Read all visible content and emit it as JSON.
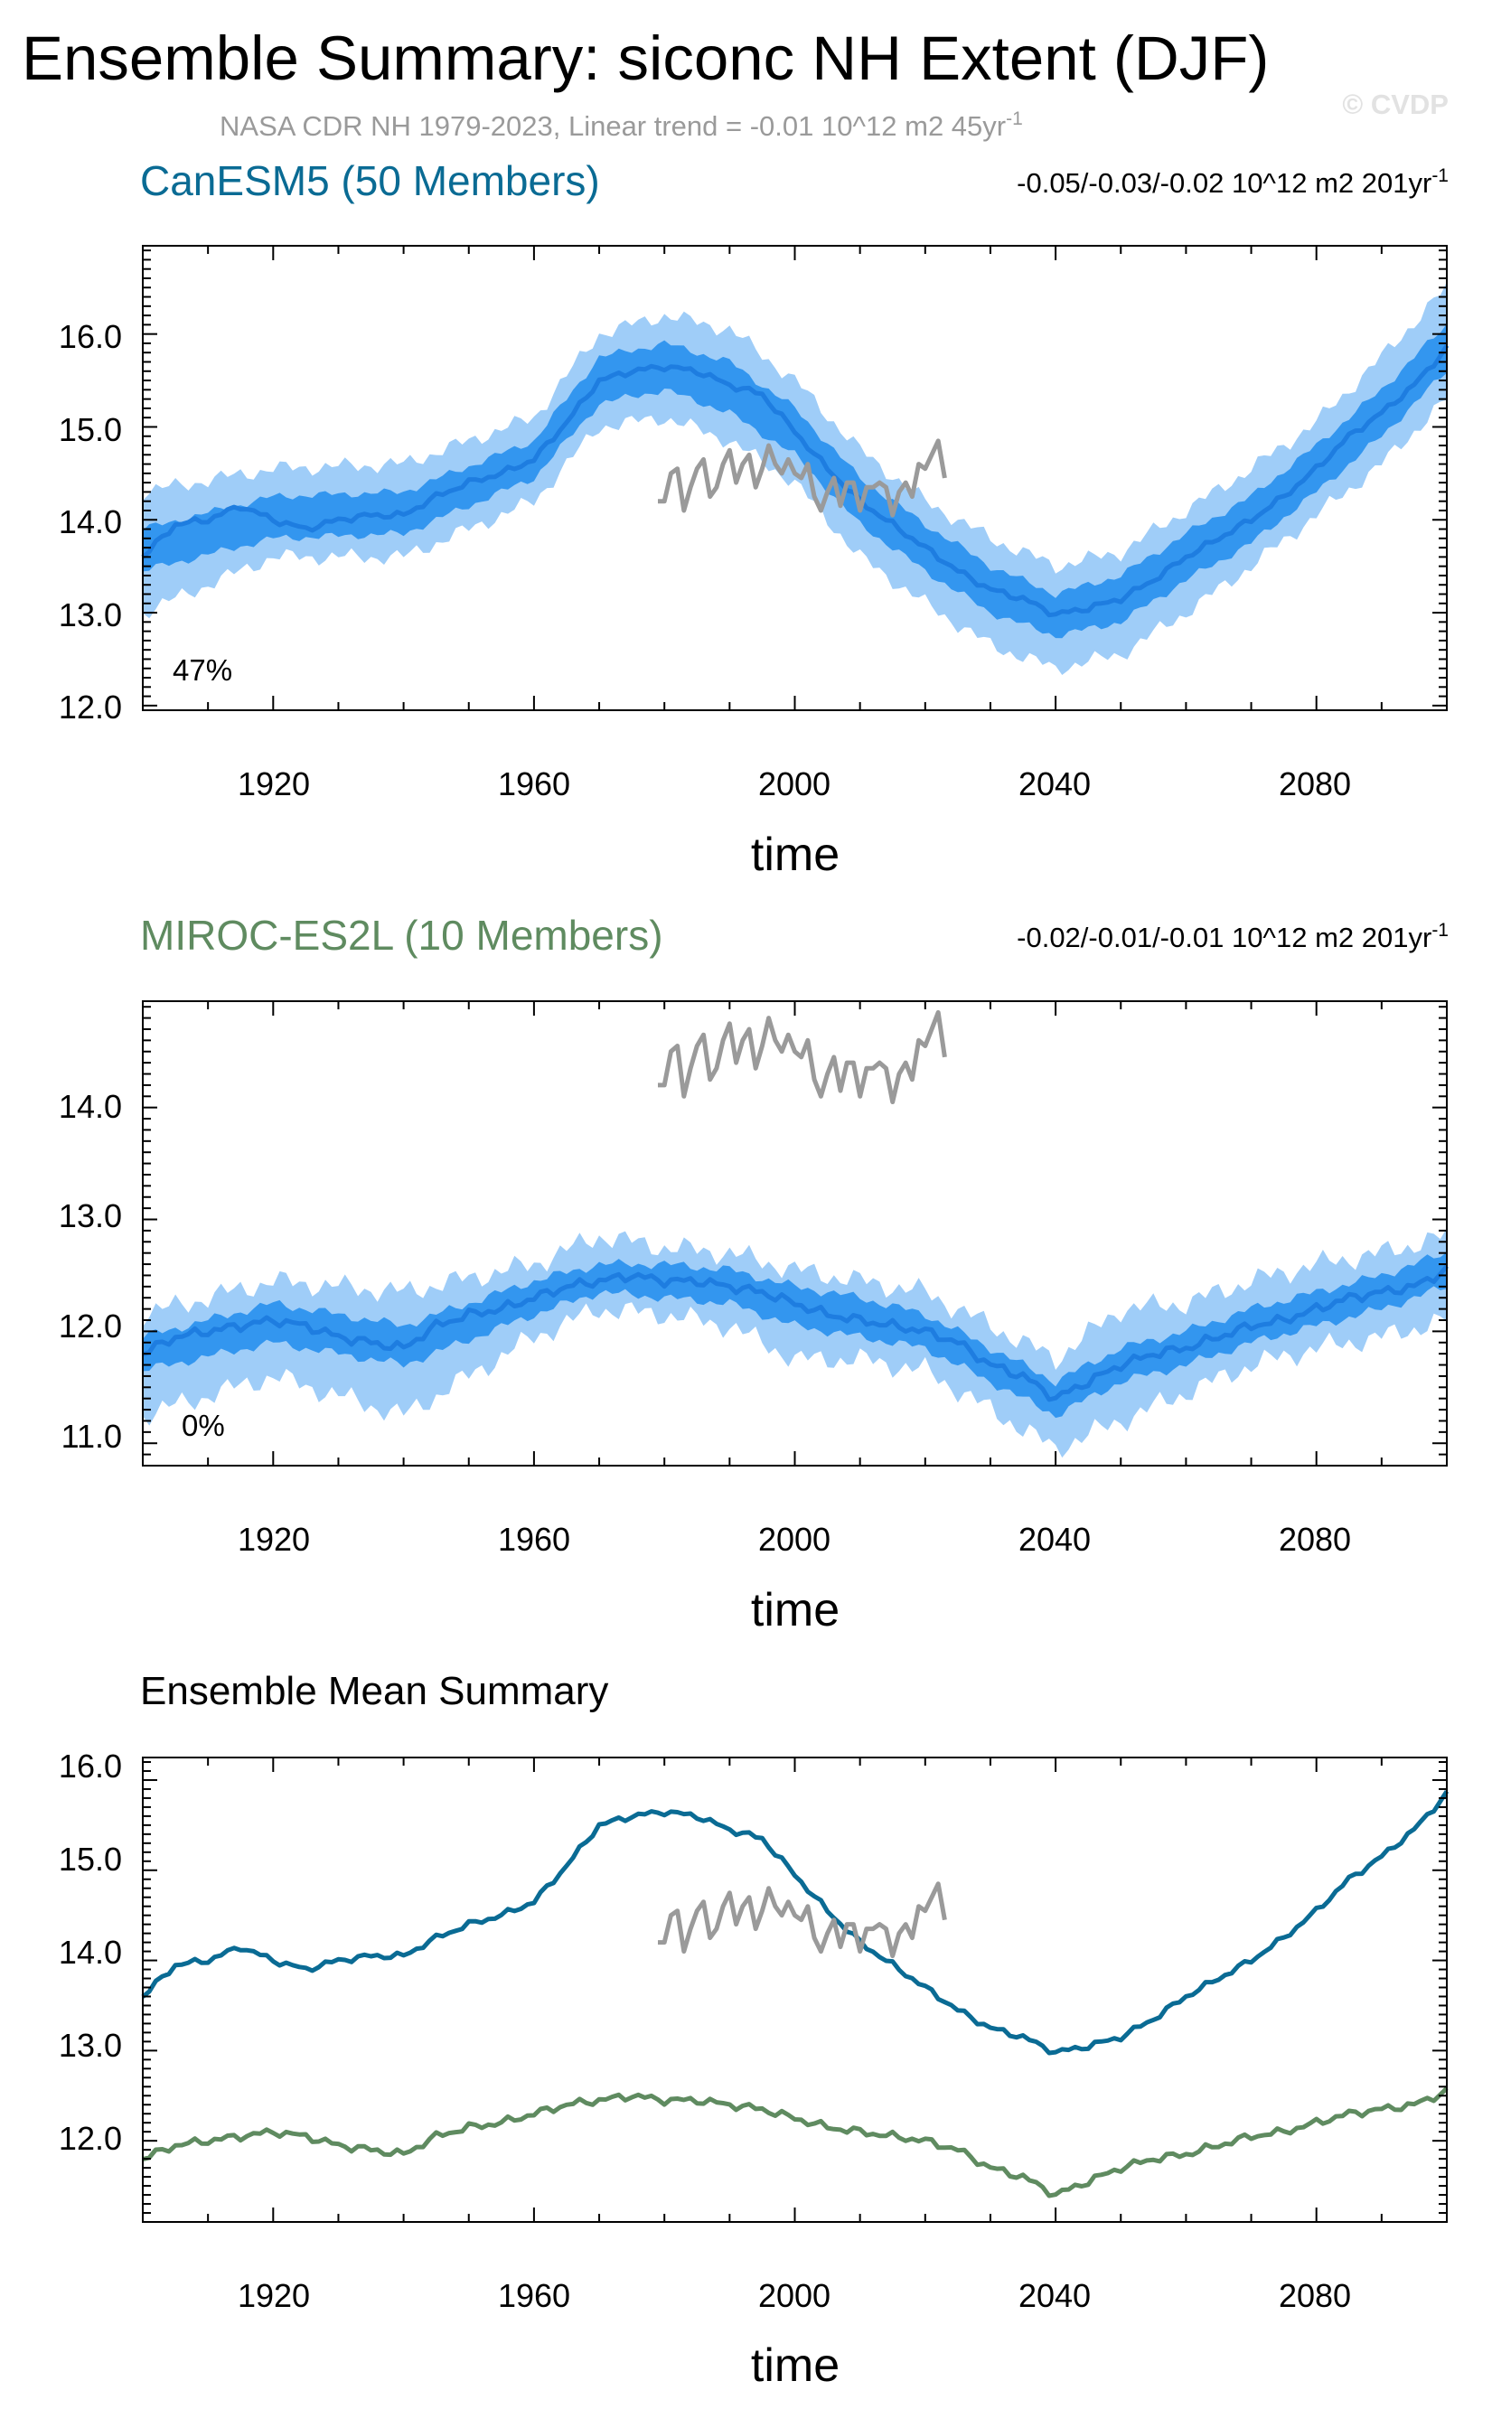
{
  "title": "Ensemble Summary: siconc NH Extent (DJF)",
  "subtitle": "NASA CDR NH 1979-2023, Linear trend = -0.01 10^12 m2 45yr",
  "subtitle_sup": "-1",
  "watermark": "© CVDP",
  "colors": {
    "canesm_title": "#0a6b94",
    "miroc_title": "#5f8b60",
    "band_outer": "#9fcdf8",
    "band_inner": "#3396ef",
    "ens_mean": "#1e7de0",
    "obs": "#9a9a9a",
    "canesm_line": "#0a6b94",
    "miroc_line": "#5f8b60"
  },
  "chart_data": [
    {
      "type": "area",
      "name": "CanESM5",
      "title": "CanESM5 (50 Members)",
      "trend_text": "-0.05/-0.03/-0.02 10^12 m2 201yr",
      "trend_sup": "-1",
      "percent_label": "47%",
      "xlabel": "time",
      "ylabel": "",
      "xlim": [
        1900,
        2100
      ],
      "ylim": [
        11.95,
        16.95
      ],
      "xticks": [
        1920,
        1960,
        2000,
        2040,
        2080
      ],
      "yticks": [
        12.0,
        13.0,
        14.0,
        15.0,
        16.0
      ],
      "yticklabels": [
        "12.0",
        "13.0",
        "14.0",
        "15.0",
        "16.0"
      ],
      "series": [
        {
          "name": "ensemble mean",
          "x": [
            1900,
            1905,
            1910,
            1915,
            1920,
            1925,
            1930,
            1935,
            1940,
            1945,
            1950,
            1955,
            1960,
            1965,
            1970,
            1975,
            1980,
            1985,
            1990,
            1995,
            2000,
            2005,
            2010,
            2015,
            2020,
            2025,
            2030,
            2035,
            2040,
            2045,
            2050,
            2055,
            2060,
            2065,
            2070,
            2075,
            2080,
            2085,
            2090,
            2095,
            2100
          ],
          "values": [
            13.6,
            13.95,
            14.0,
            14.15,
            14.0,
            13.9,
            14.0,
            14.05,
            14.05,
            14.25,
            14.4,
            14.5,
            14.65,
            15.05,
            15.5,
            15.6,
            15.65,
            15.6,
            15.45,
            15.35,
            14.95,
            14.55,
            14.2,
            13.95,
            13.7,
            13.45,
            13.25,
            13.15,
            12.98,
            13.05,
            13.15,
            13.35,
            13.6,
            13.8,
            14.0,
            14.25,
            14.55,
            14.9,
            15.15,
            15.45,
            15.85
          ]
        },
        {
          "name": "inner range (25th-75th)",
          "x": [
            1900,
            1920,
            1940,
            1960,
            1970,
            1980,
            1990,
            2000,
            2010,
            2020,
            2030,
            2040,
            2050,
            2060,
            2070,
            2080,
            2090,
            2100
          ],
          "lower": [
            13.45,
            13.8,
            13.85,
            14.45,
            15.25,
            15.4,
            15.15,
            14.7,
            13.95,
            13.45,
            13.0,
            12.75,
            12.9,
            13.35,
            13.75,
            14.3,
            14.9,
            15.6
          ],
          "upper": [
            13.9,
            14.25,
            14.3,
            14.85,
            15.75,
            15.9,
            15.7,
            15.2,
            14.45,
            13.95,
            13.5,
            13.2,
            13.4,
            13.85,
            14.25,
            14.8,
            15.4,
            16.1
          ]
        },
        {
          "name": "outer range (min-max)",
          "x": [
            1900,
            1920,
            1940,
            1960,
            1970,
            1980,
            1990,
            2000,
            2010,
            2020,
            2030,
            2040,
            2050,
            2060,
            2070,
            2080,
            2090,
            2100
          ],
          "lower": [
            13.0,
            13.6,
            13.6,
            14.2,
            15.0,
            15.1,
            14.85,
            14.4,
            13.6,
            13.1,
            12.65,
            12.4,
            12.55,
            13.0,
            13.5,
            14.05,
            14.6,
            15.3
          ],
          "upper": [
            14.3,
            14.55,
            14.6,
            15.1,
            16.0,
            16.2,
            16.05,
            15.5,
            14.75,
            14.2,
            13.8,
            13.5,
            13.65,
            14.1,
            14.55,
            15.05,
            15.75,
            16.5
          ]
        },
        {
          "name": "observations",
          "x": [
            1979,
            1980,
            1981,
            1982,
            1983,
            1984,
            1985,
            1986,
            1987,
            1988,
            1989,
            1990,
            1991,
            1992,
            1993,
            1994,
            1995,
            1996,
            1997,
            1998,
            1999,
            2000,
            2001,
            2002,
            2003,
            2004,
            2005,
            2006,
            2007,
            2008,
            2009,
            2010,
            2011,
            2012,
            2013,
            2014,
            2015,
            2016,
            2017,
            2018,
            2019,
            2020,
            2021,
            2022,
            2023
          ],
          "values": [
            14.2,
            14.2,
            14.5,
            14.55,
            14.1,
            14.35,
            14.55,
            14.65,
            14.25,
            14.35,
            14.6,
            14.75,
            14.4,
            14.6,
            14.7,
            14.35,
            14.55,
            14.8,
            14.6,
            14.5,
            14.65,
            14.5,
            14.45,
            14.6,
            14.25,
            14.1,
            14.3,
            14.45,
            14.15,
            14.4,
            14.4,
            14.1,
            14.35,
            14.35,
            14.4,
            14.35,
            14.05,
            14.3,
            14.4,
            14.25,
            14.6,
            14.55,
            14.7,
            14.85,
            14.45
          ]
        }
      ]
    },
    {
      "type": "area",
      "name": "MIROC-ES2L",
      "title": "MIROC-ES2L (10 Members)",
      "trend_text": "-0.02/-0.01/-0.01 10^12 m2 201yr",
      "trend_sup": "-1",
      "percent_label": "0%",
      "xlabel": "time",
      "ylabel": "",
      "xlim": [
        1900,
        2100
      ],
      "ylim": [
        10.8,
        14.95
      ],
      "xticks": [
        1920,
        1960,
        2000,
        2040,
        2080
      ],
      "yticks": [
        11.0,
        12.0,
        13.0,
        14.0
      ],
      "yticklabels": [
        "11.0",
        "12.0",
        "13.0",
        "14.0"
      ],
      "series": [
        {
          "name": "ensemble mean",
          "x": [
            1900,
            1905,
            1910,
            1915,
            1920,
            1925,
            1930,
            1935,
            1940,
            1945,
            1950,
            1955,
            1960,
            1965,
            1970,
            1975,
            1980,
            1985,
            1990,
            1995,
            2000,
            2005,
            2010,
            2015,
            2020,
            2025,
            2030,
            2035,
            2040,
            2045,
            2050,
            2055,
            2060,
            2065,
            2070,
            2075,
            2080,
            2085,
            2090,
            2095,
            2100
          ],
          "values": [
            11.8,
            11.95,
            12.0,
            12.05,
            12.1,
            12.05,
            11.95,
            11.9,
            11.85,
            12.05,
            12.15,
            12.2,
            12.3,
            12.4,
            12.45,
            12.5,
            12.45,
            12.45,
            12.4,
            12.35,
            12.25,
            12.15,
            12.1,
            12.05,
            12.0,
            11.9,
            11.7,
            11.6,
            11.4,
            11.55,
            11.7,
            11.8,
            11.85,
            11.95,
            12.05,
            12.1,
            12.2,
            12.3,
            12.35,
            12.4,
            12.55
          ]
        },
        {
          "name": "inner range (25th-75th)",
          "x": [
            1900,
            1920,
            1940,
            1960,
            1970,
            1980,
            1990,
            2000,
            2010,
            2020,
            2030,
            2040,
            2050,
            2060,
            2070,
            2080,
            2090,
            2100
          ],
          "lower": [
            11.65,
            11.9,
            11.7,
            12.15,
            12.35,
            12.3,
            12.25,
            12.05,
            11.95,
            11.85,
            11.55,
            11.25,
            11.55,
            11.7,
            11.9,
            12.05,
            12.2,
            12.4
          ],
          "upper": [
            11.95,
            12.25,
            12.05,
            12.45,
            12.6,
            12.6,
            12.55,
            12.4,
            12.3,
            12.15,
            11.85,
            11.55,
            11.85,
            12.0,
            12.2,
            12.35,
            12.5,
            12.7
          ]
        },
        {
          "name": "outer range (min-max)",
          "x": [
            1900,
            1920,
            1940,
            1960,
            1970,
            1980,
            1990,
            2000,
            2010,
            2020,
            2030,
            2040,
            2050,
            2060,
            2070,
            2080,
            2090,
            2100
          ],
          "lower": [
            11.25,
            11.6,
            11.25,
            11.95,
            12.2,
            12.15,
            12.05,
            11.75,
            11.75,
            11.65,
            11.3,
            10.95,
            11.2,
            11.45,
            11.7,
            11.85,
            11.95,
            12.1
          ],
          "upper": [
            12.15,
            12.45,
            12.35,
            12.6,
            12.85,
            12.75,
            12.7,
            12.55,
            12.45,
            12.35,
            12.05,
            11.75,
            12.2,
            12.25,
            12.45,
            12.6,
            12.7,
            12.85
          ]
        },
        {
          "name": "observations",
          "x": [
            1979,
            1980,
            1981,
            1982,
            1983,
            1984,
            1985,
            1986,
            1987,
            1988,
            1989,
            1990,
            1991,
            1992,
            1993,
            1994,
            1995,
            1996,
            1997,
            1998,
            1999,
            2000,
            2001,
            2002,
            2003,
            2004,
            2005,
            2006,
            2007,
            2008,
            2009,
            2010,
            2011,
            2012,
            2013,
            2014,
            2015,
            2016,
            2017,
            2018,
            2019,
            2020,
            2021,
            2022,
            2023
          ],
          "values": [
            14.2,
            14.2,
            14.5,
            14.55,
            14.1,
            14.35,
            14.55,
            14.65,
            14.25,
            14.35,
            14.6,
            14.75,
            14.4,
            14.6,
            14.7,
            14.35,
            14.55,
            14.8,
            14.6,
            14.5,
            14.65,
            14.5,
            14.45,
            14.6,
            14.25,
            14.1,
            14.3,
            14.45,
            14.15,
            14.4,
            14.4,
            14.1,
            14.35,
            14.35,
            14.4,
            14.35,
            14.05,
            14.3,
            14.4,
            14.25,
            14.6,
            14.55,
            14.7,
            14.85,
            14.45
          ]
        }
      ]
    },
    {
      "type": "line",
      "name": "Ensemble Mean",
      "title": "Ensemble Mean Summary",
      "xlabel": "time",
      "ylabel": "",
      "xlim": [
        1900,
        2100
      ],
      "ylim": [
        11.1,
        16.25
      ],
      "xticks": [
        1920,
        1960,
        2000,
        2040,
        2080
      ],
      "yticks": [
        12.0,
        13.0,
        14.0,
        15.0,
        16.0
      ],
      "yticklabels": [
        "12.0",
        "13.0",
        "14.0",
        "15.0",
        "16.0"
      ],
      "series": [
        {
          "name": "CanESM5",
          "x": [
            1900,
            1905,
            1910,
            1915,
            1920,
            1925,
            1930,
            1935,
            1940,
            1945,
            1950,
            1955,
            1960,
            1965,
            1970,
            1975,
            1980,
            1985,
            1990,
            1995,
            2000,
            2005,
            2010,
            2015,
            2020,
            2025,
            2030,
            2035,
            2040,
            2045,
            2050,
            2055,
            2060,
            2065,
            2070,
            2075,
            2080,
            2085,
            2090,
            2095,
            2100
          ],
          "values": [
            13.6,
            13.95,
            14.0,
            14.15,
            14.0,
            13.9,
            14.0,
            14.05,
            14.05,
            14.25,
            14.4,
            14.5,
            14.65,
            15.05,
            15.5,
            15.6,
            15.65,
            15.6,
            15.45,
            15.35,
            14.95,
            14.55,
            14.2,
            13.95,
            13.7,
            13.45,
            13.25,
            13.15,
            12.98,
            13.05,
            13.15,
            13.35,
            13.6,
            13.8,
            14.0,
            14.25,
            14.55,
            14.9,
            15.15,
            15.45,
            15.85
          ]
        },
        {
          "name": "MIROC-ES2L",
          "x": [
            1900,
            1905,
            1910,
            1915,
            1920,
            1925,
            1930,
            1935,
            1940,
            1945,
            1950,
            1955,
            1960,
            1965,
            1970,
            1975,
            1980,
            1985,
            1990,
            1995,
            2000,
            2005,
            2010,
            2015,
            2020,
            2025,
            2030,
            2035,
            2040,
            2045,
            2050,
            2055,
            2060,
            2065,
            2070,
            2075,
            2080,
            2085,
            2090,
            2095,
            2100
          ],
          "values": [
            11.8,
            11.95,
            12.0,
            12.05,
            12.1,
            12.05,
            11.95,
            11.9,
            11.85,
            12.05,
            12.15,
            12.2,
            12.3,
            12.4,
            12.45,
            12.5,
            12.45,
            12.45,
            12.4,
            12.35,
            12.25,
            12.15,
            12.1,
            12.05,
            12.0,
            11.9,
            11.7,
            11.6,
            11.4,
            11.55,
            11.7,
            11.8,
            11.85,
            11.95,
            12.05,
            12.1,
            12.2,
            12.3,
            12.35,
            12.4,
            12.55
          ]
        },
        {
          "name": "observations",
          "x": [
            1979,
            1980,
            1981,
            1982,
            1983,
            1984,
            1985,
            1986,
            1987,
            1988,
            1989,
            1990,
            1991,
            1992,
            1993,
            1994,
            1995,
            1996,
            1997,
            1998,
            1999,
            2000,
            2001,
            2002,
            2003,
            2004,
            2005,
            2006,
            2007,
            2008,
            2009,
            2010,
            2011,
            2012,
            2013,
            2014,
            2015,
            2016,
            2017,
            2018,
            2019,
            2020,
            2021,
            2022,
            2023
          ],
          "values": [
            14.2,
            14.2,
            14.5,
            14.55,
            14.1,
            14.35,
            14.55,
            14.65,
            14.25,
            14.35,
            14.6,
            14.75,
            14.4,
            14.6,
            14.7,
            14.35,
            14.55,
            14.8,
            14.6,
            14.5,
            14.65,
            14.5,
            14.45,
            14.6,
            14.25,
            14.1,
            14.3,
            14.45,
            14.15,
            14.4,
            14.4,
            14.1,
            14.35,
            14.35,
            14.4,
            14.35,
            14.05,
            14.3,
            14.4,
            14.25,
            14.6,
            14.55,
            14.7,
            14.85,
            14.45
          ]
        }
      ]
    }
  ]
}
